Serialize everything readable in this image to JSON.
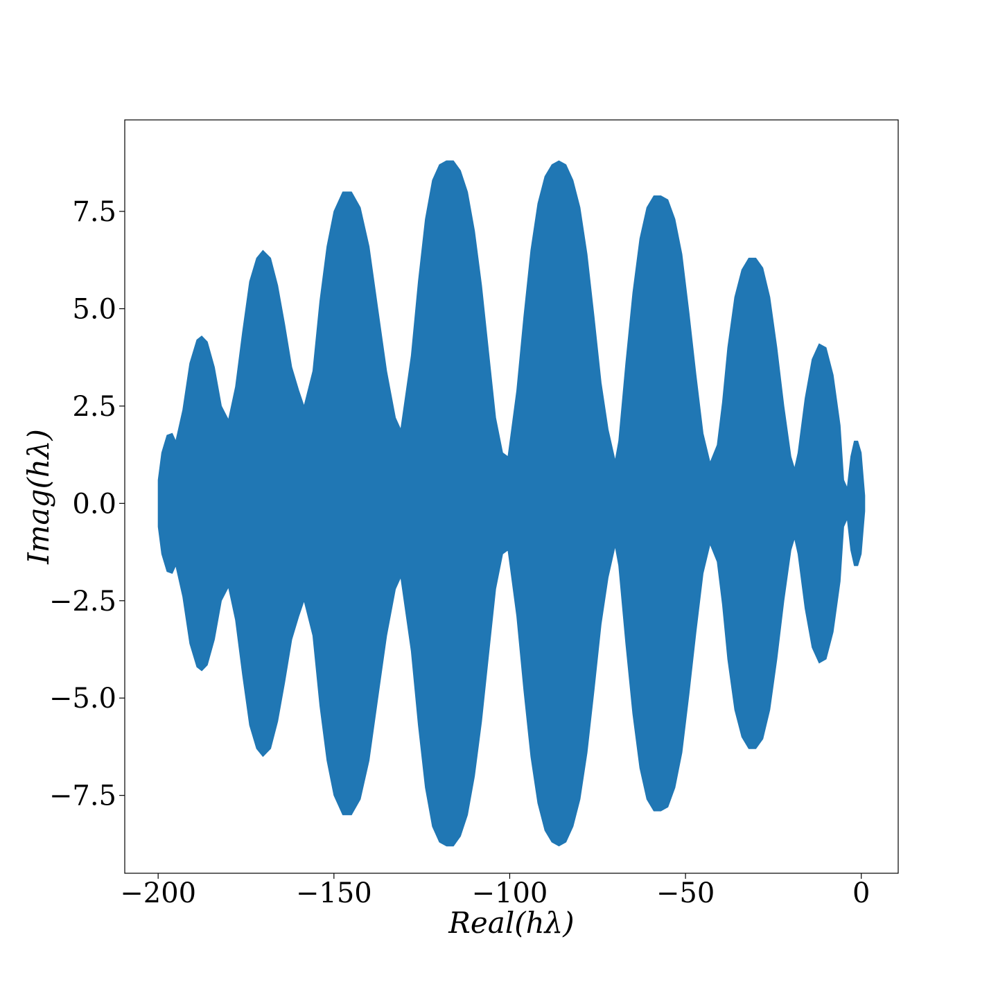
{
  "chart_data": {
    "type": "area",
    "title": "",
    "xlabel": "Real(hλ)",
    "ylabel": "Imag(hλ)",
    "xlim": [
      -209.5,
      10.5
    ],
    "ylim": [
      -9.5,
      9.85
    ],
    "xticks": [
      -200,
      -150,
      -100,
      -50,
      0
    ],
    "xtick_labels": [
      "−200",
      "−150",
      "−100",
      "−50",
      "0"
    ],
    "yticks": [
      -7.5,
      -5.0,
      -2.5,
      0.0,
      2.5,
      5.0,
      7.5
    ],
    "ytick_labels": [
      "−7.5",
      "−5.0",
      "−2.5",
      "0.0",
      "2.5",
      "5.0",
      "7.5"
    ],
    "grid": false,
    "fill_color": "#2077b4",
    "description_region": "region symmetric about Imag = 0, boundary |Imag| vs Real",
    "series": [
      {
        "x": [
          -200,
          -199,
          -197.5,
          -196,
          -195,
          -193,
          -191,
          -189,
          -187.6,
          -186,
          -184,
          -182,
          -180,
          -178,
          -176,
          -174,
          -172,
          -170.2,
          -168,
          -166,
          -164,
          -162,
          -160,
          -158.5,
          -156,
          -154,
          -152,
          -150,
          -147.5,
          -145,
          -142.5,
          -140,
          -137.5,
          -135,
          -132.5,
          -131,
          -128,
          -126,
          -124,
          -122,
          -120,
          -118,
          -116,
          -114,
          -112,
          -110,
          -108,
          -106,
          -104,
          -102,
          -100.5,
          -98,
          -96,
          -94,
          -92,
          -90,
          -88,
          -86,
          -84,
          -82,
          -80,
          -78,
          -76,
          -74,
          -72,
          -70,
          -69,
          -67,
          -65,
          -63,
          -61,
          -59,
          -57,
          -55,
          -53,
          -51,
          -49,
          -47,
          -45,
          -43,
          -41,
          -39.5,
          -38,
          -36,
          -34,
          -32,
          -30,
          -28,
          -26,
          -24,
          -22,
          -20,
          -19,
          -18,
          -16,
          -14,
          -12,
          -10,
          -8,
          -6,
          -5,
          -4,
          -3,
          -2,
          -1,
          0,
          1
        ],
        "y_upper": [
          0.6,
          1.3,
          1.75,
          1.8,
          1.6,
          2.4,
          3.6,
          4.2,
          4.3,
          4.15,
          3.5,
          2.5,
          2.15,
          3.0,
          4.4,
          5.7,
          6.3,
          6.5,
          6.3,
          5.6,
          4.6,
          3.5,
          2.9,
          2.5,
          3.4,
          5.2,
          6.6,
          7.5,
          8.0,
          8.0,
          7.6,
          6.6,
          5.0,
          3.4,
          2.2,
          1.9,
          3.8,
          5.7,
          7.3,
          8.3,
          8.7,
          8.8,
          8.8,
          8.55,
          8.0,
          7.0,
          5.6,
          3.9,
          2.2,
          1.3,
          1.2,
          2.9,
          4.8,
          6.5,
          7.7,
          8.4,
          8.7,
          8.8,
          8.7,
          8.3,
          7.6,
          6.4,
          4.8,
          3.1,
          1.9,
          1.1,
          1.6,
          3.6,
          5.4,
          6.8,
          7.6,
          7.9,
          7.9,
          7.8,
          7.3,
          6.4,
          4.9,
          3.3,
          1.8,
          1.05,
          1.5,
          2.6,
          4.0,
          5.3,
          6.0,
          6.3,
          6.3,
          6.05,
          5.3,
          4.0,
          2.5,
          1.2,
          0.9,
          1.3,
          2.7,
          3.7,
          4.1,
          4.0,
          3.3,
          2.0,
          0.6,
          0.4,
          1.2,
          1.6,
          1.6,
          1.3,
          0.2
        ],
        "y_lower": [
          -0.6,
          -1.3,
          -1.75,
          -1.8,
          -1.6,
          -2.4,
          -3.6,
          -4.2,
          -4.3,
          -4.15,
          -3.5,
          -2.5,
          -2.15,
          -3.0,
          -4.4,
          -5.7,
          -6.3,
          -6.5,
          -6.3,
          -5.6,
          -4.6,
          -3.5,
          -2.9,
          -2.5,
          -3.4,
          -5.2,
          -6.6,
          -7.5,
          -8.0,
          -8.0,
          -7.6,
          -6.6,
          -5.0,
          -3.4,
          -2.2,
          -1.9,
          -3.8,
          -5.7,
          -7.3,
          -8.3,
          -8.7,
          -8.8,
          -8.8,
          -8.55,
          -8.0,
          -7.0,
          -5.6,
          -3.9,
          -2.2,
          -1.3,
          -1.2,
          -2.9,
          -4.8,
          -6.5,
          -7.7,
          -8.4,
          -8.7,
          -8.8,
          -8.7,
          -8.3,
          -7.6,
          -6.4,
          -4.8,
          -3.1,
          -1.9,
          -1.1,
          -1.6,
          -3.6,
          -5.4,
          -6.8,
          -7.6,
          -7.9,
          -7.9,
          -7.8,
          -7.3,
          -6.4,
          -4.9,
          -3.3,
          -1.8,
          -1.05,
          -1.5,
          -2.6,
          -4.0,
          -5.3,
          -6.0,
          -6.3,
          -6.3,
          -6.05,
          -5.3,
          -4.0,
          -2.5,
          -1.2,
          -0.9,
          -1.3,
          -2.7,
          -3.7,
          -4.1,
          -4.0,
          -3.3,
          -2.0,
          -0.6,
          -0.4,
          -1.2,
          -1.6,
          -1.6,
          -1.3,
          -0.2
        ]
      }
    ]
  }
}
